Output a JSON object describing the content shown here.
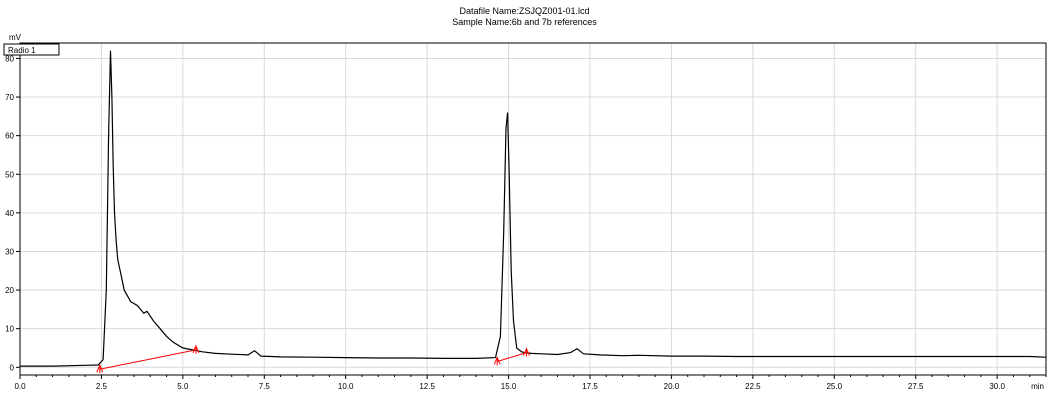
{
  "header": {
    "datafile_line": "Datafile Name:ZSJQZ001-01.lcd",
    "sample_line": "Sample Name:6b and 7b references"
  },
  "chart_data": {
    "type": "line",
    "title": "",
    "xlabel": "min",
    "ylabel": "mV",
    "legend": "Radio 1",
    "xlim": [
      0,
      31.5
    ],
    "ylim": [
      -2,
      84
    ],
    "xticks": [
      "0.0",
      "2.5",
      "5.0",
      "7.5",
      "10.0",
      "12.5",
      "15.0",
      "17.5",
      "20.0",
      "22.5",
      "25.0",
      "27.5",
      "30.0"
    ],
    "xtick_values": [
      0,
      2.5,
      5,
      7.5,
      10,
      12.5,
      15,
      17.5,
      20,
      22.5,
      25,
      27.5,
      30
    ],
    "yticks": [
      "0",
      "10",
      "20",
      "30",
      "40",
      "50",
      "60",
      "70",
      "80"
    ],
    "ytick_values": [
      0,
      10,
      20,
      30,
      40,
      50,
      60,
      70,
      80
    ],
    "grid": true,
    "series": [
      {
        "color": "#000000",
        "x": [
          0,
          1.0,
          2.0,
          2.4,
          2.55,
          2.65,
          2.72,
          2.78,
          2.82,
          2.86,
          2.9,
          2.95,
          3.0,
          3.05,
          3.1,
          3.2,
          3.3,
          3.4,
          3.6,
          3.8,
          3.9,
          4.1,
          4.3,
          4.5,
          4.7,
          5.0,
          5.3,
          5.6,
          6.0,
          6.5,
          7.0,
          7.2,
          7.4,
          8.0,
          9.0,
          10.0,
          11.0,
          12.0,
          13.0,
          14.0,
          14.6,
          14.75,
          14.85,
          14.92,
          14.97,
          15.02,
          15.08,
          15.15,
          15.25,
          15.4,
          15.5,
          15.7,
          16.0,
          16.5,
          16.9,
          17.1,
          17.3,
          17.8,
          18.5,
          19.0,
          20.0,
          21.0,
          22.0,
          23.0,
          24.0,
          25.0,
          26.0,
          27.0,
          28.0,
          29.0,
          30.0,
          31.0,
          31.5
        ],
        "y": [
          0.3,
          0.3,
          0.5,
          0.6,
          2,
          20,
          60,
          82,
          70,
          52,
          40,
          33,
          28,
          26,
          24,
          20,
          18.5,
          17,
          16,
          14,
          14.5,
          12,
          10,
          8,
          6.5,
          5,
          4.5,
          4,
          3.6,
          3.4,
          3.2,
          4.3,
          2.9,
          2.7,
          2.6,
          2.5,
          2.4,
          2.4,
          2.3,
          2.3,
          2.5,
          8,
          35,
          62,
          66,
          50,
          25,
          12,
          5,
          4,
          3.8,
          3.6,
          3.5,
          3.3,
          3.8,
          4.8,
          3.5,
          3.2,
          3.0,
          3.1,
          2.9,
          2.9,
          2.8,
          2.8,
          2.8,
          2.8,
          2.8,
          2.8,
          2.8,
          2.8,
          2.8,
          2.8,
          2.6
        ]
      },
      {
        "color": "#ff0000",
        "x": [
          2.45,
          5.4
        ],
        "y": [
          -0.5,
          4.5
        ]
      },
      {
        "color": "#ff0000",
        "x": [
          14.65,
          15.55
        ],
        "y": [
          1.5,
          3.8
        ]
      }
    ],
    "peak_markers": [
      {
        "x": 2.45,
        "y": -0.5
      },
      {
        "x": 5.4,
        "y": 4.5
      },
      {
        "x": 14.65,
        "y": 1.5
      },
      {
        "x": 15.55,
        "y": 3.8
      }
    ]
  }
}
